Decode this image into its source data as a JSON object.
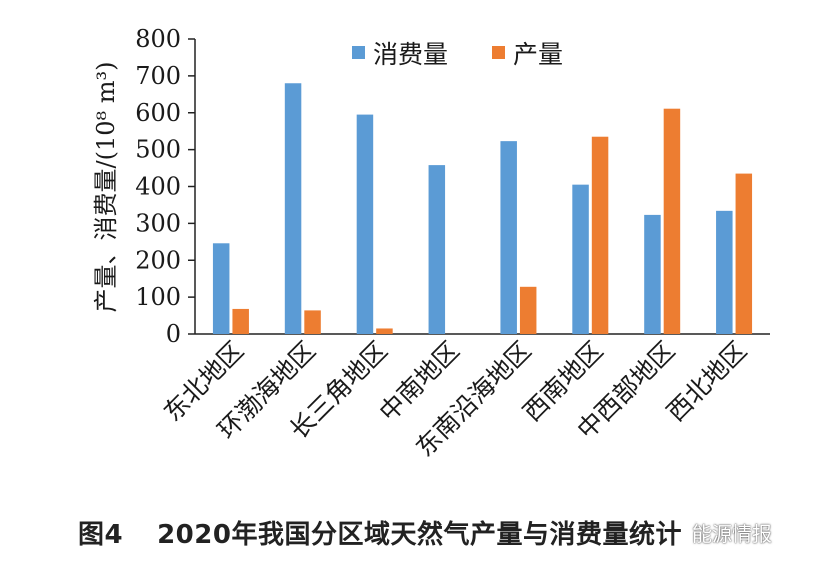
{
  "chart_data": {
    "type": "bar",
    "categories": [
      "东北地区",
      "环渤海地区",
      "长三角地区",
      "中南地区",
      "东南沿海地区",
      "西南地区",
      "中西部地区",
      "西北地区"
    ],
    "series": [
      {
        "name": "消费量",
        "color": "#5b9bd5",
        "values": [
          246,
          680,
          595,
          458,
          523,
          405,
          323,
          334
        ]
      },
      {
        "name": "产量",
        "color": "#ed7d31",
        "values": [
          68,
          64,
          15,
          0,
          128,
          535,
          611,
          435
        ]
      }
    ],
    "ylabel": "产量、消费量/(10⁸ m³)",
    "ylim": [
      0,
      800
    ],
    "yticks": [
      "0",
      "100",
      "200",
      "300",
      "400",
      "500",
      "600",
      "700",
      "800"
    ],
    "grid": false,
    "legend_position": "top-center"
  },
  "caption": {
    "figure_label": "图4",
    "title": "2020年我国分区域天然气产量与消费量统计"
  },
  "watermark": {
    "text": "能源情报"
  }
}
